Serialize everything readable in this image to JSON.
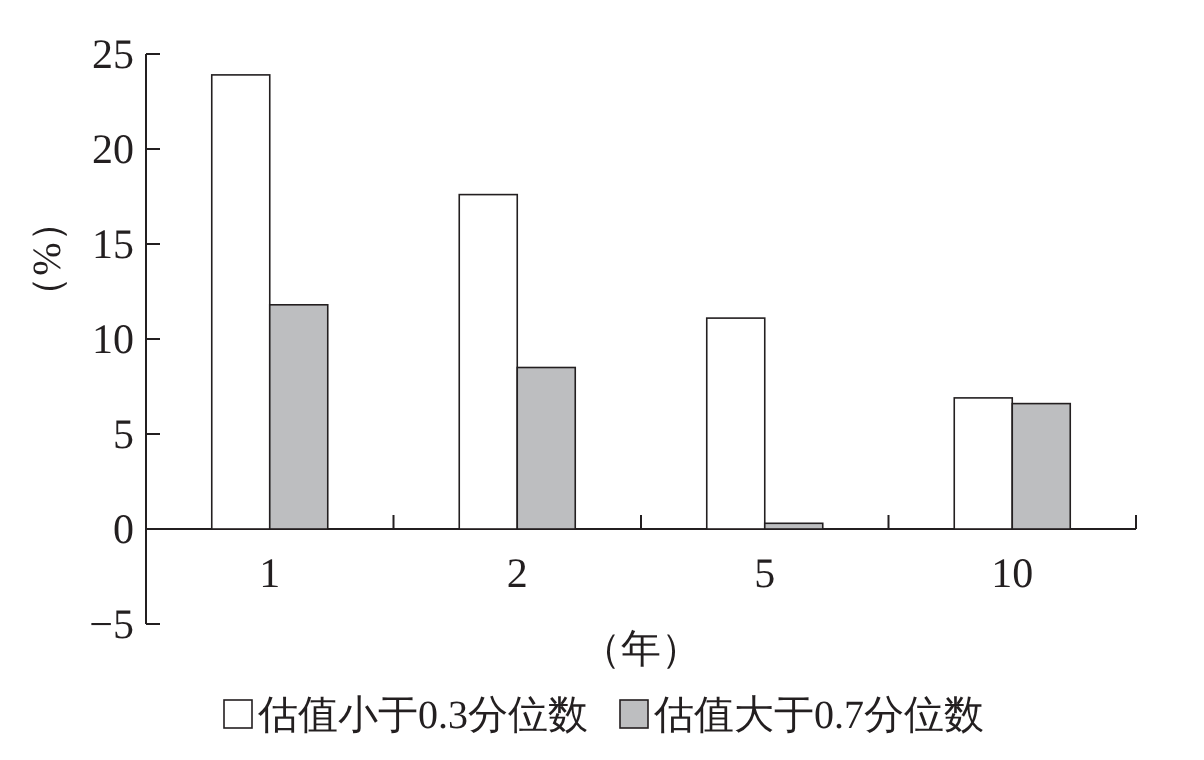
{
  "chart_data": {
    "type": "bar",
    "xlabel": "（年）",
    "ylabel": "（%）",
    "categories": [
      "1",
      "2",
      "5",
      "10"
    ],
    "series": [
      {
        "name": "估值小于0.3分位数",
        "color": "#ffffff",
        "values": [
          23.9,
          17.6,
          11.1,
          6.9
        ]
      },
      {
        "name": "估值大于0.7分位数",
        "color": "#bdbec0",
        "values": [
          11.8,
          8.5,
          0.3,
          6.6
        ]
      }
    ],
    "ylim": [
      -5,
      25
    ],
    "yticks": [
      -5,
      0,
      5,
      10,
      15,
      20,
      25
    ],
    "legend": "bottom",
    "grid": false
  }
}
